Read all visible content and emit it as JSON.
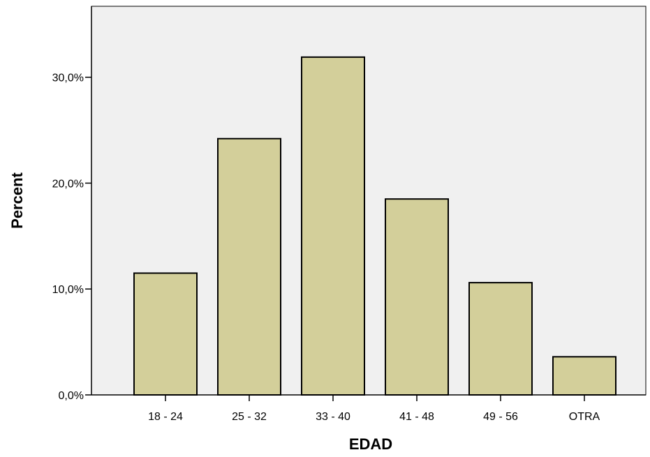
{
  "chart_data": {
    "type": "bar",
    "title": "",
    "xlabel": "EDAD",
    "ylabel": "Percent",
    "categories": [
      "18 - 24",
      "25 - 32",
      "33 - 40",
      "41 - 48",
      "49 - 56",
      "OTRA"
    ],
    "values": [
      11.5,
      24.2,
      31.9,
      18.5,
      10.6,
      3.6
    ],
    "ylim": [
      0,
      36.7
    ],
    "yticks": [
      0,
      10,
      20,
      30
    ],
    "ytick_labels": [
      "0,0%",
      "10,0%",
      "20,0%",
      "30,0%"
    ],
    "grid": false,
    "legend": "none"
  },
  "colors": {
    "bar_fill": "#d3cf9a",
    "bar_stroke": "#000000",
    "plot_background": "#f0f0f0",
    "axis": "#000000"
  }
}
